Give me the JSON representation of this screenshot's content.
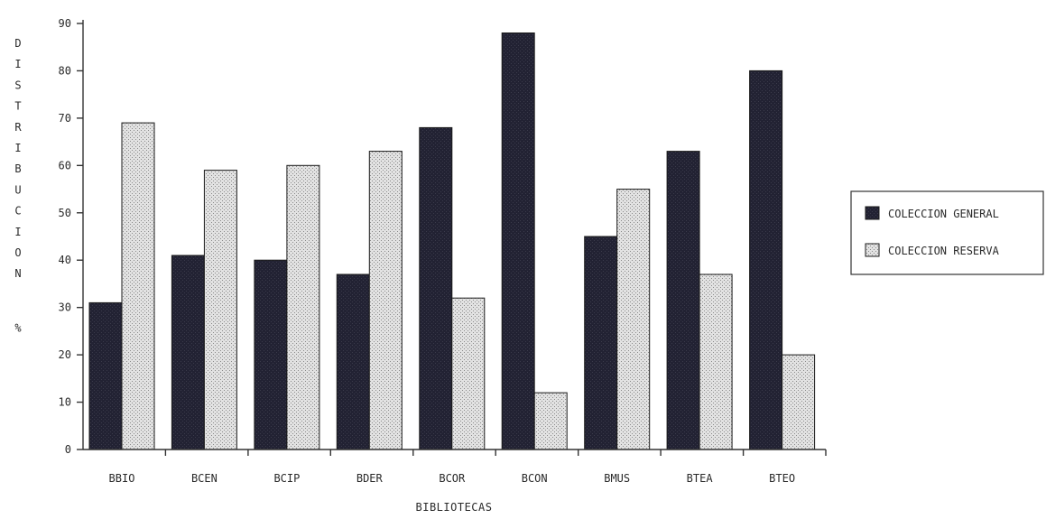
{
  "chart_data": {
    "type": "bar",
    "title": "",
    "xlabel": "BIBLIOTECAS",
    "ylabel": "DISTRIBUCION %",
    "ylim": [
      0,
      90
    ],
    "yticks": [
      0,
      10,
      20,
      30,
      40,
      50,
      60,
      70,
      80,
      90
    ],
    "categories": [
      "BBIO",
      "BCEN",
      "BCIP",
      "BDER",
      "BCOR",
      "BCON",
      "BMUS",
      "BTEA",
      "BTEO"
    ],
    "series": [
      {
        "name": "COLECCION GENERAL",
        "values": [
          31,
          41,
          40,
          37,
          68,
          88,
          45,
          63,
          80
        ],
        "color": "#222233"
      },
      {
        "name": "COLECCION RESERVA",
        "values": [
          69,
          59,
          60,
          63,
          32,
          12,
          55,
          37,
          20
        ],
        "color": "#d6d6d6"
      }
    ],
    "grid": false,
    "legend_position": "right"
  }
}
